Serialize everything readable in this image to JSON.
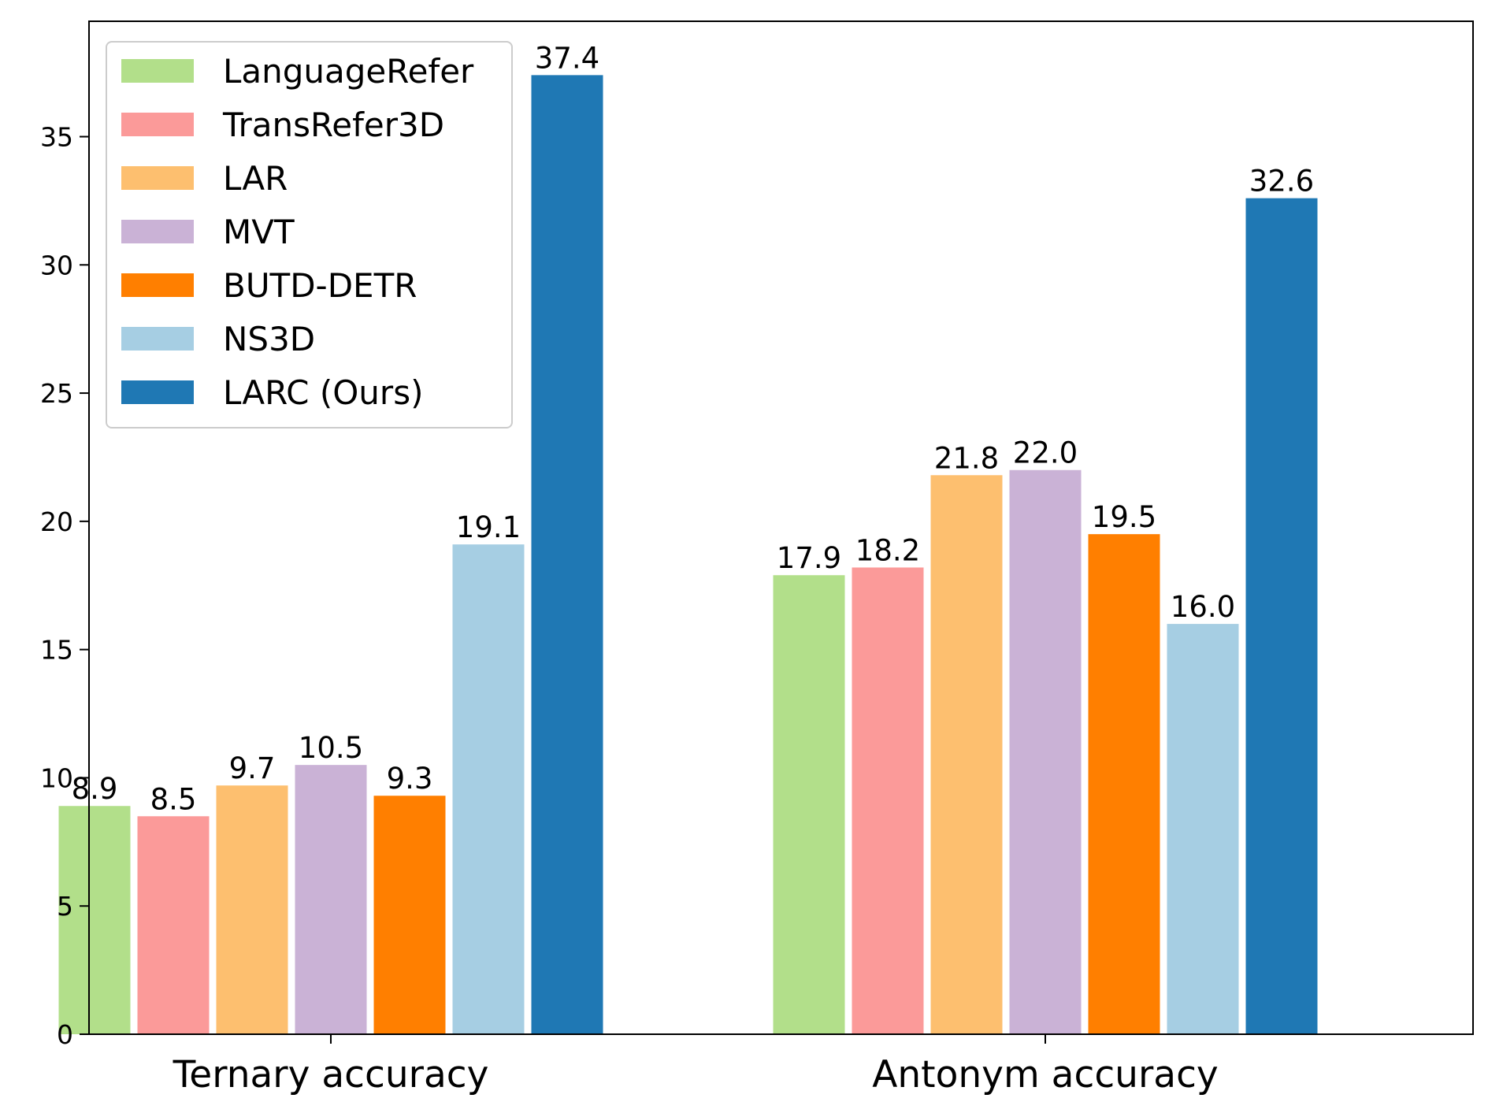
{
  "chart_data": {
    "type": "bar",
    "title": "",
    "xlabel": "",
    "ylabel": "",
    "categories": [
      "Ternary accuracy",
      "Antonym accuracy"
    ],
    "ylim": [
      0,
      39.5
    ],
    "yticks": [
      0,
      5,
      10,
      15,
      20,
      25,
      30,
      35
    ],
    "grid": false,
    "legend_position": "top-left",
    "series": [
      {
        "name": "LanguageRefer",
        "color": "#b2df8a",
        "values": [
          8.9,
          17.9
        ],
        "labels": [
          "8.9",
          "17.9"
        ]
      },
      {
        "name": "TransRefer3D",
        "color": "#fb9a99",
        "values": [
          8.5,
          18.2
        ],
        "labels": [
          "8.5",
          "18.2"
        ]
      },
      {
        "name": "LAR",
        "color": "#fdbf6f",
        "values": [
          9.7,
          21.8
        ],
        "labels": [
          "9.7",
          "21.8"
        ]
      },
      {
        "name": "MVT",
        "color": "#cab2d6",
        "values": [
          10.5,
          22.0
        ],
        "labels": [
          "10.5",
          "22.0"
        ]
      },
      {
        "name": "BUTD-DETR",
        "color": "#ff7f00",
        "values": [
          9.3,
          19.5
        ],
        "labels": [
          "9.3",
          "19.5"
        ]
      },
      {
        "name": "NS3D",
        "color": "#a6cee3",
        "values": [
          19.1,
          16.0
        ],
        "labels": [
          "19.1",
          "16.0"
        ]
      },
      {
        "name": "LARC (Ours)",
        "color": "#1f78b4",
        "values": [
          37.4,
          32.6
        ],
        "labels": [
          "37.4",
          "32.6"
        ]
      }
    ]
  }
}
